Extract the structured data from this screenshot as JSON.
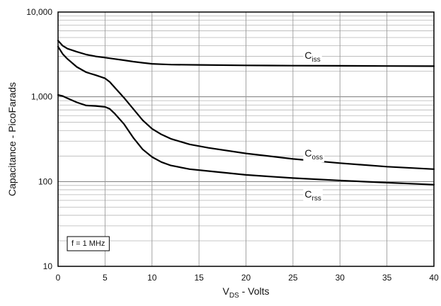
{
  "chart_data": {
    "type": "line",
    "title": "",
    "xlabel": {
      "main": "V",
      "sub": "DS",
      "rest": " - Volts"
    },
    "ylabel": "Capacitance - PicoFarads",
    "xlim": [
      0,
      40
    ],
    "ylim": [
      10,
      10000
    ],
    "yscale": "log",
    "grid": true,
    "x_ticks": [
      0,
      5,
      10,
      15,
      20,
      25,
      30,
      35,
      40
    ],
    "x_tick_labels": [
      "0",
      "5",
      "10",
      "15",
      "20",
      "25",
      "30",
      "35",
      "40"
    ],
    "y_ticks": [
      10,
      100,
      1000,
      10000
    ],
    "y_tick_labels": [
      "10",
      "100",
      "1,000",
      "10,000"
    ],
    "annotation": "f = 1 MHz",
    "series": [
      {
        "label_main": "C",
        "label_sub": "iss",
        "x": [
          0,
          0.5,
          1,
          2,
          3,
          4,
          5,
          6,
          7,
          8,
          9,
          10,
          11,
          12,
          15,
          20,
          25,
          30,
          35,
          40
        ],
        "y": [
          4600,
          4000,
          3700,
          3400,
          3150,
          3000,
          2900,
          2800,
          2700,
          2600,
          2520,
          2450,
          2420,
          2400,
          2380,
          2350,
          2330,
          2320,
          2310,
          2300
        ]
      },
      {
        "label_main": "C",
        "label_sub": "oss",
        "x": [
          0,
          0.5,
          1,
          2,
          3,
          4,
          5,
          5.5,
          6,
          7,
          8,
          9,
          10,
          11,
          12,
          14,
          16,
          20,
          25,
          30,
          35,
          40
        ],
        "y": [
          3900,
          3200,
          2800,
          2250,
          1950,
          1800,
          1650,
          1500,
          1300,
          980,
          720,
          530,
          420,
          360,
          320,
          275,
          250,
          215,
          185,
          165,
          150,
          140
        ]
      },
      {
        "label_main": "C",
        "label_sub": "rss",
        "x": [
          0,
          0.5,
          1,
          2,
          3,
          4,
          5,
          5.5,
          6,
          7,
          8,
          9,
          10,
          11,
          12,
          14,
          16,
          20,
          25,
          30,
          35,
          40
        ],
        "y": [
          1050,
          1020,
          960,
          860,
          790,
          780,
          760,
          720,
          640,
          480,
          330,
          240,
          195,
          170,
          155,
          140,
          133,
          120,
          110,
          103,
          97,
          92
        ]
      }
    ]
  }
}
